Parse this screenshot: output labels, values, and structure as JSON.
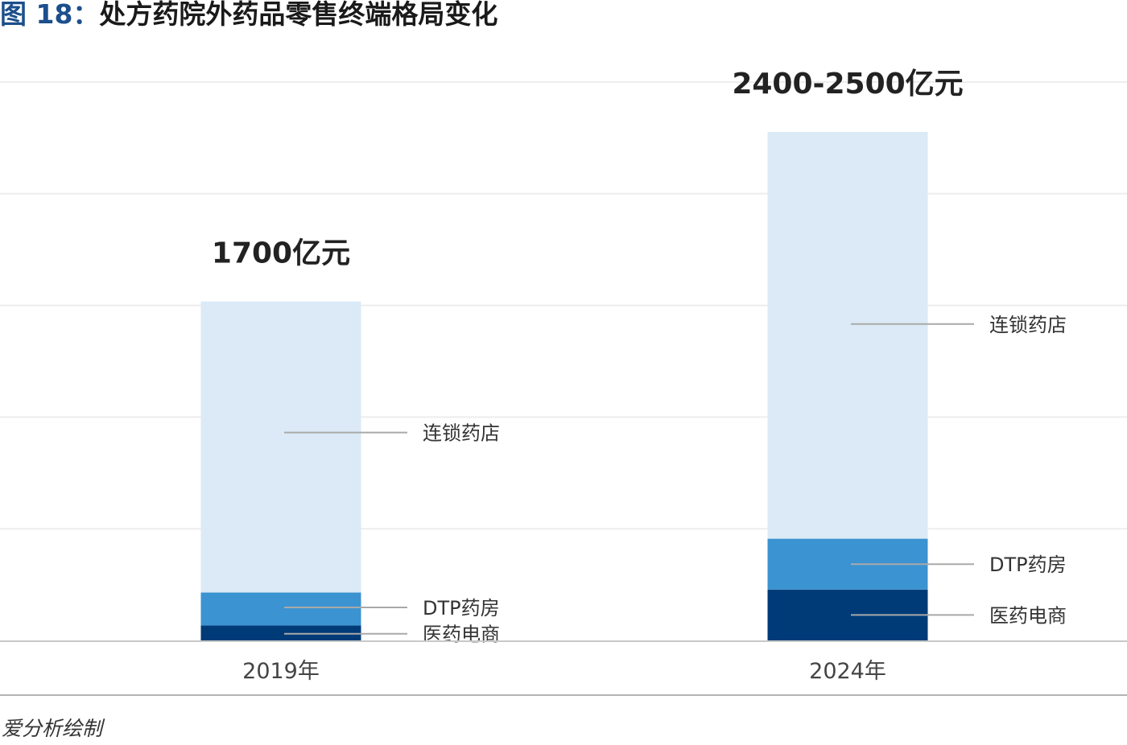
{
  "header": {
    "figure_number": "图 18：",
    "title": "处方药院外药品零售终端格局变化"
  },
  "source": "爱分析绘制",
  "colors": {
    "chain": "#dbeaf6",
    "dtp": "#3b93d1",
    "ecommerce": "#003b78",
    "grid": "#ededed",
    "axis": "#c8c8c8",
    "leader": "#a9a9a9",
    "label_text": "#333333",
    "total_text": "#222222",
    "title_accent": "#1c4f8c"
  },
  "chart_data": {
    "type": "bar",
    "stacked": true,
    "title": "处方药院外药品零售终端格局变化",
    "xlabel": "",
    "ylabel": "",
    "unit": "亿元",
    "grid": true,
    "categories": [
      "2019年",
      "2024年"
    ],
    "totals_labels": [
      "1700亿元",
      "2400-2500亿元"
    ],
    "series": [
      {
        "name": "医药电商",
        "color_key": "ecommerce",
        "values": [
          75,
          255
        ]
      },
      {
        "name": "DTP药房",
        "color_key": "dtp",
        "values": [
          165,
          255
        ]
      },
      {
        "name": "连锁药店",
        "color_key": "chain",
        "values": [
          1460,
          2040
        ]
      }
    ],
    "ylim": [
      0,
      2800
    ],
    "gridlines": [
      0,
      560,
      1120,
      1680,
      2240,
      2800
    ]
  }
}
